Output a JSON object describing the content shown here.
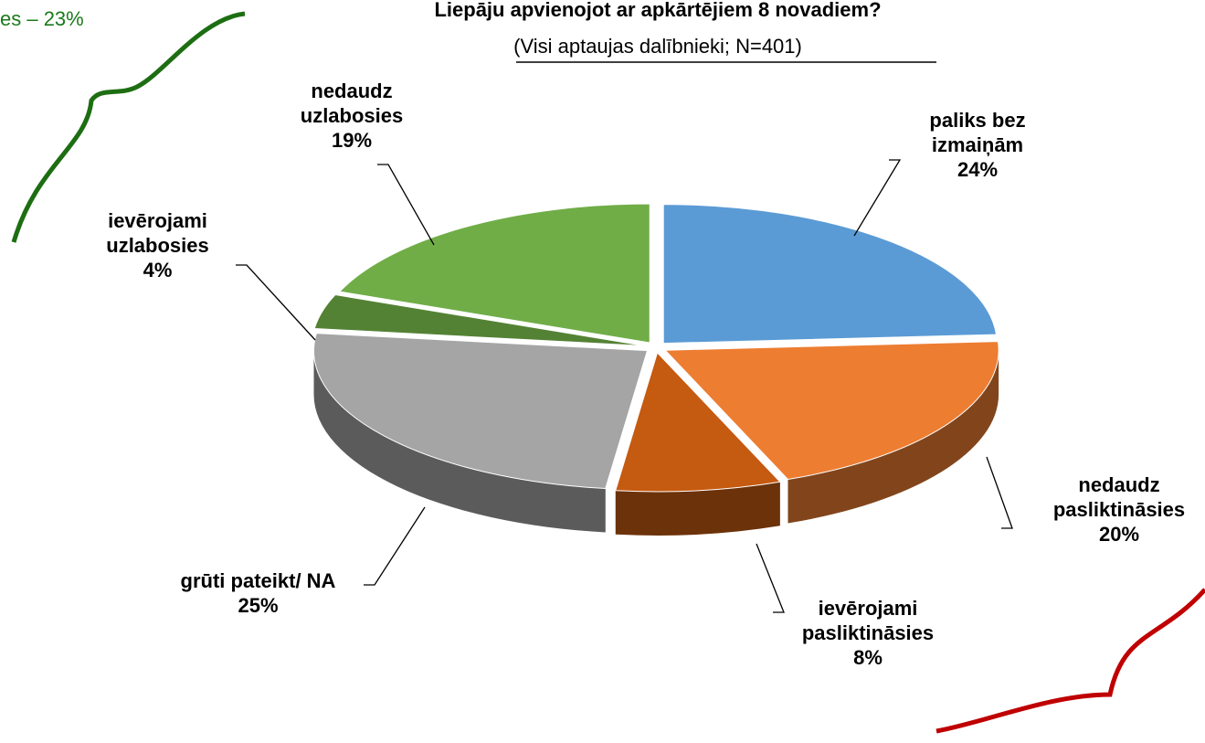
{
  "chart_data": {
    "type": "pie3d",
    "title": "Liepāju apvienojot ar apkārtējiem 8 novadiem?",
    "subtitle": "(Visi aptaujas dalībnieki; N=401)",
    "annotations": [
      "es – 23%"
    ],
    "categories": [
      "paliks bez izmaiņām",
      "nedaudz pasliktināsies",
      "ievērojami pasliktināsies",
      "grūti pateikt/ NA",
      "ievērojami uzlabosies",
      "nedaudz uzlabosies"
    ],
    "values": [
      24,
      20,
      8,
      25,
      4,
      19
    ],
    "value_labels": [
      "24%",
      "20%",
      "8%",
      "25%",
      "4%",
      "19%"
    ],
    "colors": [
      "#5b9bd5",
      "#ed7d31",
      "#c55a11",
      "#a5a5a5",
      "#548235",
      "#70ad47"
    ]
  }
}
